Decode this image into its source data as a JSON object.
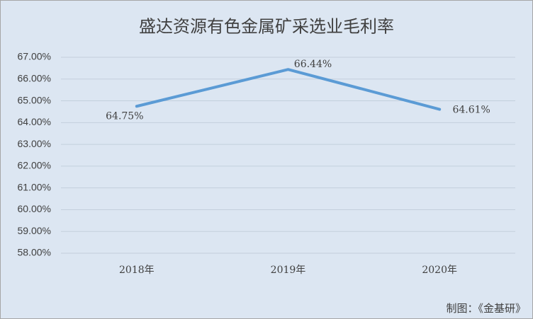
{
  "chart_data": {
    "type": "line",
    "title": "盛达资源有色金属矿采选业毛利率",
    "categories": [
      "2018年",
      "2019年",
      "2020年"
    ],
    "values": [
      64.75,
      66.44,
      64.61
    ],
    "value_labels": [
      "64.75%",
      "66.44%",
      "64.61%"
    ],
    "color": "#5b9bd5",
    "ylim": [
      58,
      67
    ],
    "yticks": [
      {
        "value": 58,
        "label": "58.00%"
      },
      {
        "value": 59,
        "label": "59.00%"
      },
      {
        "value": 60,
        "label": "60.00%"
      },
      {
        "value": 61,
        "label": "61.00%"
      },
      {
        "value": 62,
        "label": "62.00%"
      },
      {
        "value": 63,
        "label": "63.00%"
      },
      {
        "value": 64,
        "label": "64.00%"
      },
      {
        "value": 65,
        "label": "65.00%"
      },
      {
        "value": 66,
        "label": "66.00%"
      },
      {
        "value": 67,
        "label": "67.00%"
      }
    ],
    "grid": true,
    "annotation": "制图：《金基研》"
  }
}
